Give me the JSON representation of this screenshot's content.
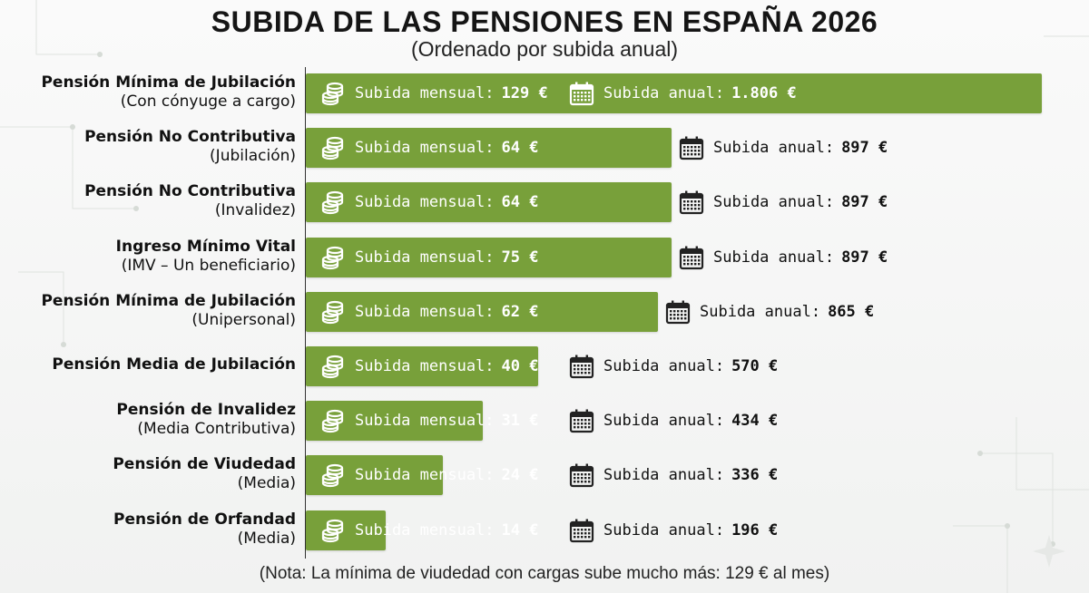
{
  "title": "SUBIDA DE LAS PENSIONES EN ESPAÑA 2026",
  "subtitle": "(Ordenado por subida anual)",
  "note": "(Nota: La mínima de viudedad con cargas sube mucho más: 129 € al mes)",
  "colors": {
    "bar": "#78a03a",
    "text": "#111111",
    "icon_light": "#ffffff",
    "icon_dark": "#222222"
  },
  "icons": {
    "monthly": "coin-stack-icon",
    "annual": "calendar-icon"
  },
  "chart_data": {
    "type": "bar",
    "orientation": "horizontal",
    "title": "SUBIDA DE LAS PENSIONES EN ESPAÑA 2026",
    "subtitle": "(Ordenado por subida anual)",
    "monthly_prefix": "Subida mensual:",
    "annual_prefix": "Subida anual:",
    "currency": "€",
    "max_value": 1806,
    "grid": false,
    "legend": "none",
    "categories": [
      {
        "name": "Pensión Mínima de Jubilación",
        "detail": "(Con cónyuge a cargo)",
        "monthly": 129,
        "annual": 1806,
        "monthly_text": "129 €",
        "annual_text": "1.806 €"
      },
      {
        "name": "Pensión No Contributiva",
        "detail": "(Jubilación)",
        "monthly": 64,
        "annual": 897,
        "monthly_text": "64 €",
        "annual_text": "897 €"
      },
      {
        "name": "Pensión No Contributiva",
        "detail": "(Invalidez)",
        "monthly": 64,
        "annual": 897,
        "monthly_text": "64 €",
        "annual_text": "897 €"
      },
      {
        "name": "Ingreso Mínimo Vital",
        "detail": "(IMV – Un beneficiario)",
        "monthly": 75,
        "annual": 897,
        "monthly_text": "75 €",
        "annual_text": "897 €"
      },
      {
        "name": "Pensión Mínima de Jubilación",
        "detail": "(Unipersonal)",
        "monthly": 62,
        "annual": 865,
        "monthly_text": "62 €",
        "annual_text": "865 €"
      },
      {
        "name": "Pensión Media de Jubilación",
        "detail": "",
        "monthly": 40,
        "annual": 570,
        "monthly_text": "40 €",
        "annual_text": "570 €"
      },
      {
        "name": "Pensión de Invalidez",
        "detail": "(Media Contributiva)",
        "monthly": 31,
        "annual": 434,
        "monthly_text": "31 €",
        "annual_text": "434 €"
      },
      {
        "name": "Pensión de Viudedad",
        "detail": "(Media)",
        "monthly": 24,
        "annual": 336,
        "monthly_text": "24 €",
        "annual_text": "336 €"
      },
      {
        "name": "Pensión de Orfandad",
        "detail": "(Media)",
        "monthly": 14,
        "annual": 196,
        "monthly_text": "14 €",
        "annual_text": "196 €"
      }
    ]
  }
}
